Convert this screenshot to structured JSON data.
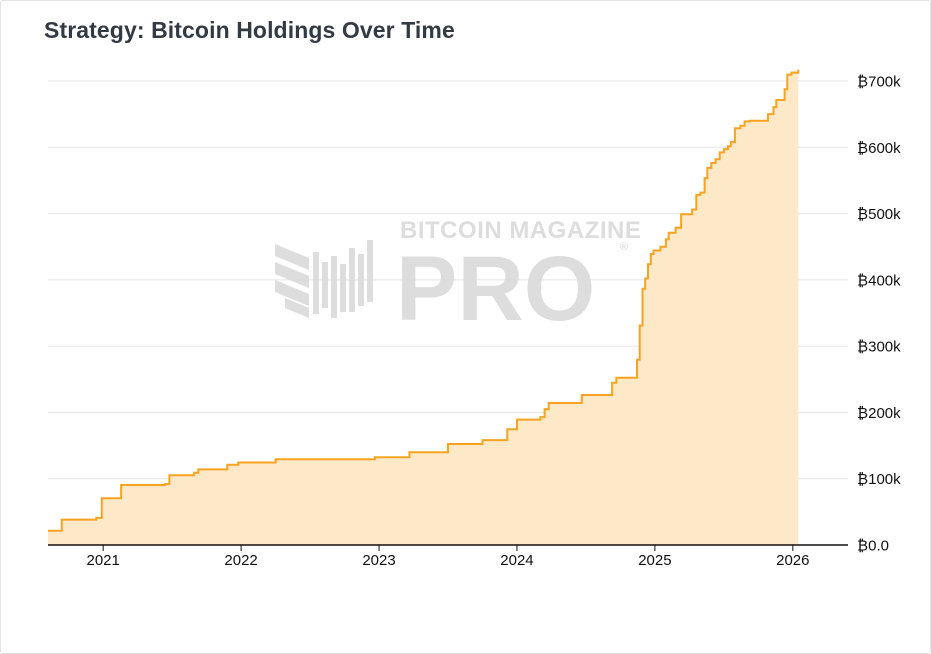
{
  "title": "Strategy: Bitcoin Holdings Over Time",
  "watermark": {
    "brand": "BITCOIN MAGAZINE",
    "product": "PRO",
    "registered": "®"
  },
  "colors": {
    "line": "#f7a321",
    "fill": "#fde8c8",
    "grid": "#e4e4e4",
    "axis": "#111111"
  },
  "chart_data": {
    "type": "area",
    "title": "Strategy: Bitcoin Holdings Over Time",
    "xlabel": "",
    "ylabel": "",
    "x_ticks": [
      {
        "value": 2021,
        "label": "2021"
      },
      {
        "value": 2022,
        "label": "2022"
      },
      {
        "value": 2023,
        "label": "2023"
      },
      {
        "value": 2024,
        "label": "2024"
      },
      {
        "value": 2025,
        "label": "2025"
      },
      {
        "value": 2026,
        "label": "2026"
      }
    ],
    "y_ticks": [
      {
        "value": 0,
        "label": "₿0.0"
      },
      {
        "value": 100000,
        "label": "₿100k"
      },
      {
        "value": 200000,
        "label": "₿200k"
      },
      {
        "value": 300000,
        "label": "₿300k"
      },
      {
        "value": 400000,
        "label": "₿400k"
      },
      {
        "value": 500000,
        "label": "₿500k"
      },
      {
        "value": 600000,
        "label": "₿600k"
      },
      {
        "value": 700000,
        "label": "₿700k"
      }
    ],
    "xlim": [
      2020.6,
      2026.4
    ],
    "ylim": [
      0,
      700000
    ],
    "y_axis_side": "right",
    "grid": true,
    "series": [
      {
        "name": "Bitcoin Holdings",
        "step": true,
        "points": [
          [
            2020.6,
            21454
          ],
          [
            2020.7,
            38250
          ],
          [
            2020.95,
            40824
          ],
          [
            2020.99,
            70470
          ],
          [
            2021.13,
            90531
          ],
          [
            2021.45,
            92079
          ],
          [
            2021.48,
            105085
          ],
          [
            2021.66,
            108992
          ],
          [
            2021.69,
            114042
          ],
          [
            2021.9,
            121044
          ],
          [
            2021.98,
            124391
          ],
          [
            2022.25,
            129218
          ],
          [
            2022.97,
            132500
          ],
          [
            2023.22,
            140000
          ],
          [
            2023.5,
            152333
          ],
          [
            2023.75,
            158245
          ],
          [
            2023.93,
            174530
          ],
          [
            2024.0,
            189150
          ],
          [
            2024.17,
            193000
          ],
          [
            2024.2,
            205000
          ],
          [
            2024.23,
            214246
          ],
          [
            2024.47,
            226331
          ],
          [
            2024.69,
            244800
          ],
          [
            2024.72,
            252220
          ],
          [
            2024.87,
            279420
          ],
          [
            2024.89,
            331200
          ],
          [
            2024.91,
            386700
          ],
          [
            2024.93,
            402100
          ],
          [
            2024.95,
            423650
          ],
          [
            2024.97,
            439000
          ],
          [
            2024.99,
            444262
          ],
          [
            2025.04,
            450000
          ],
          [
            2025.08,
            461000
          ],
          [
            2025.1,
            471107
          ],
          [
            2025.15,
            478740
          ],
          [
            2025.19,
            499096
          ],
          [
            2025.27,
            506137
          ],
          [
            2025.3,
            528185
          ],
          [
            2025.33,
            531644
          ],
          [
            2025.36,
            553555
          ],
          [
            2025.38,
            568840
          ],
          [
            2025.41,
            576230
          ],
          [
            2025.44,
            582000
          ],
          [
            2025.47,
            592345
          ],
          [
            2025.5,
            597325
          ],
          [
            2025.53,
            601550
          ],
          [
            2025.55,
            607770
          ],
          [
            2025.58,
            628791
          ],
          [
            2025.62,
            632457
          ],
          [
            2025.65,
            638985
          ],
          [
            2025.69,
            640031
          ],
          [
            2025.82,
            650000
          ],
          [
            2025.86,
            660624
          ],
          [
            2025.88,
            671268
          ],
          [
            2025.94,
            687410
          ],
          [
            2025.96,
            709715
          ],
          [
            2025.99,
            712647
          ],
          [
            2026.04,
            717131
          ]
        ]
      }
    ]
  }
}
